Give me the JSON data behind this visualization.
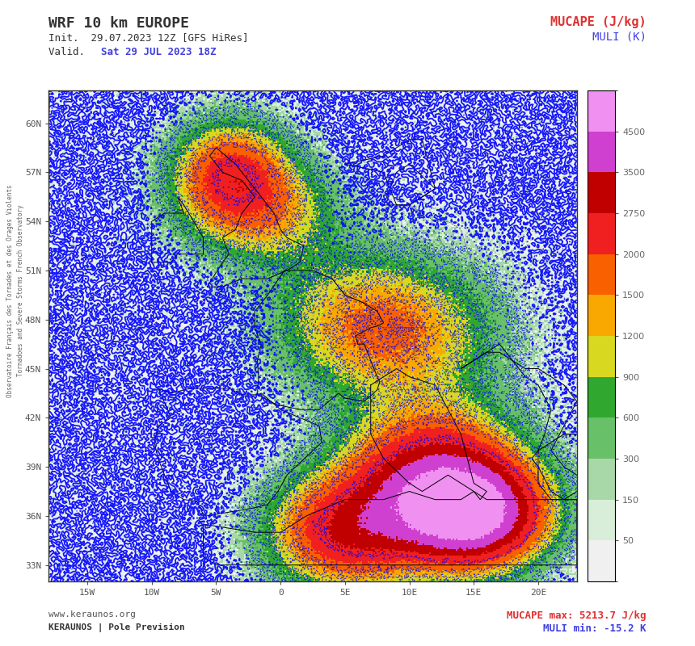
{
  "title_left": "WRF 10 km EUROPE",
  "title_right_line1": "MUCAPE (J/kg)",
  "title_right_line2": "MULI (K)",
  "init_text": "Init.  29.07.2023 12Z [GFS HiRes]",
  "valid_text_prefix": "Valid. ",
  "valid_text_colored": "Sat 29 JUL 2023 18Z",
  "bottom_left1": "www.keraunos.org",
  "bottom_left2": "KERAUNOS | Pole Prevision",
  "bottom_right1": "MUCAPE max: 5213.7 J/kg",
  "bottom_right2": "MULI min: -15.2 K",
  "colorbar_ticks": [
    50,
    150,
    300,
    600,
    900,
    1200,
    1500,
    2000,
    2750,
    3500,
    4500
  ],
  "map_extent": [
    -18,
    23,
    32,
    62
  ],
  "lon_ticks": [
    -15,
    -10,
    -5,
    0,
    5,
    10,
    15,
    20
  ],
  "lat_ticks": [
    33,
    36,
    39,
    42,
    45,
    48,
    51,
    54,
    57,
    60
  ],
  "background_color": "#ffffff",
  "title_right_color1": "#e03030",
  "title_right_color2": "#4040e0",
  "valid_color": "#4040e0",
  "bottom_right_color1": "#e03030",
  "bottom_right_color2": "#4040e0",
  "sidebar_text1": "Observatoire Français des Tornades et des Orages Violents",
  "sidebar_text2": "Tornadoes and Severe Storms French Observatory"
}
